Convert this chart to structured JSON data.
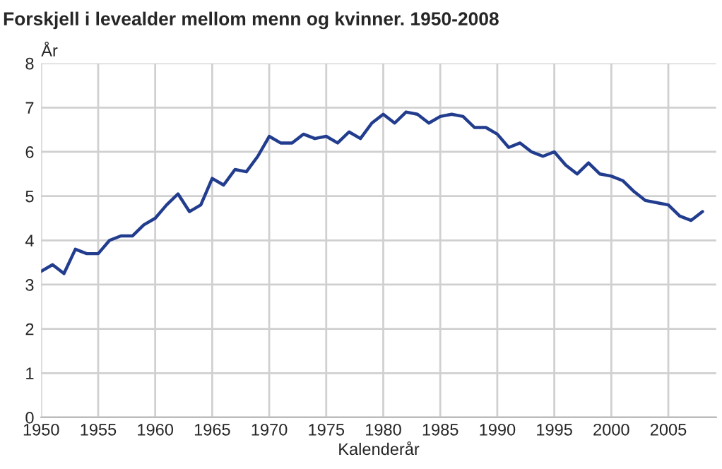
{
  "chart_data": {
    "type": "line",
    "title": "Forskjell i levealder mellom menn og kvinner. 1950-2008",
    "xlabel": "Kalenderår",
    "ylabel": "År",
    "x": [
      1950,
      1951,
      1952,
      1953,
      1954,
      1955,
      1956,
      1957,
      1958,
      1959,
      1960,
      1961,
      1962,
      1963,
      1964,
      1965,
      1966,
      1967,
      1968,
      1969,
      1970,
      1971,
      1972,
      1973,
      1974,
      1975,
      1976,
      1977,
      1978,
      1979,
      1980,
      1981,
      1982,
      1983,
      1984,
      1985,
      1986,
      1987,
      1988,
      1989,
      1990,
      1991,
      1992,
      1993,
      1994,
      1995,
      1996,
      1997,
      1998,
      1999,
      2000,
      2001,
      2002,
      2003,
      2004,
      2005,
      2006,
      2007,
      2008
    ],
    "series": [
      {
        "color": "#223d8e",
        "values": [
          3.3,
          3.45,
          3.25,
          3.8,
          3.7,
          3.7,
          4.0,
          4.1,
          4.1,
          4.35,
          4.5,
          4.8,
          5.05,
          4.65,
          4.8,
          5.4,
          5.25,
          5.6,
          5.55,
          5.9,
          6.35,
          6.2,
          6.2,
          6.4,
          6.3,
          6.35,
          6.2,
          6.45,
          6.3,
          6.65,
          6.85,
          6.65,
          6.9,
          6.85,
          6.65,
          6.8,
          6.85,
          6.8,
          6.55,
          6.55,
          6.4,
          6.1,
          6.2,
          6.0,
          5.9,
          6.0,
          5.7,
          5.5,
          5.75,
          5.5,
          5.45,
          5.35,
          5.1,
          4.9,
          4.85,
          4.8,
          4.55,
          4.45,
          4.65
        ]
      }
    ],
    "xlim": [
      1950,
      2009.2
    ],
    "ylim": [
      0,
      8
    ],
    "xticks": [
      1950,
      1955,
      1960,
      1965,
      1970,
      1975,
      1980,
      1985,
      1990,
      1995,
      2000,
      2005
    ],
    "yticks": [
      0,
      1,
      2,
      3,
      4,
      5,
      6,
      7,
      8
    ],
    "grid": true,
    "legend": false,
    "marker": "none",
    "line_style": "solid"
  }
}
